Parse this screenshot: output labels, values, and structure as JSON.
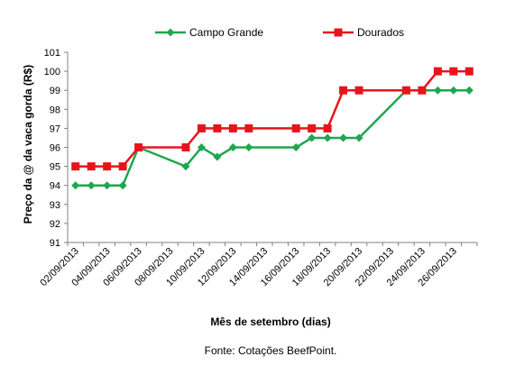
{
  "chart_data": {
    "type": "line",
    "ylabel": "Preço da @ da vaca gorda (R$)",
    "xlabel": "Mês de setembro  (dias)",
    "source": "Fonte: Cotações BeefPoint.",
    "ylim": [
      91,
      101
    ],
    "yticks": [
      91,
      92,
      93,
      94,
      95,
      96,
      97,
      98,
      99,
      100,
      101
    ],
    "grid": false,
    "legend_position": "top",
    "x_categories": [
      "02/09/2013",
      "03/09/2013",
      "04/09/2013",
      "05/09/2013",
      "06/09/2013",
      "07/09/2013",
      "08/09/2013",
      "09/09/2013",
      "10/09/2013",
      "11/09/2013",
      "12/09/2013",
      "13/09/2013",
      "14/09/2013",
      "15/09/2013",
      "16/09/2013",
      "17/09/2013",
      "18/09/2013",
      "19/09/2013",
      "20/09/2013",
      "21/09/2013",
      "22/09/2013",
      "23/09/2013",
      "24/09/2013",
      "25/09/2013",
      "26/09/2013",
      "27/09/2013"
    ],
    "x_tick_labels": [
      "02/09/2013",
      "04/09/2013",
      "06/09/2013",
      "08/09/2013",
      "10/09/2013",
      "12/09/2013",
      "14/09/2013",
      "16/09/2013",
      "18/09/2013",
      "20/09/2013",
      "22/09/2013",
      "24/09/2013",
      "26/09/2013"
    ],
    "series": [
      {
        "name": "Campo Grande",
        "color": "#1fa650",
        "marker": "diamond",
        "points": [
          {
            "x": "02/09/2013",
            "y": 94
          },
          {
            "x": "03/09/2013",
            "y": 94
          },
          {
            "x": "04/09/2013",
            "y": 94
          },
          {
            "x": "05/09/2013",
            "y": 94
          },
          {
            "x": "06/09/2013",
            "y": 96
          },
          {
            "x": "09/09/2013",
            "y": 95
          },
          {
            "x": "10/09/2013",
            "y": 96
          },
          {
            "x": "11/09/2013",
            "y": 95.5
          },
          {
            "x": "12/09/2013",
            "y": 96
          },
          {
            "x": "13/09/2013",
            "y": 96
          },
          {
            "x": "16/09/2013",
            "y": 96
          },
          {
            "x": "17/09/2013",
            "y": 96.5
          },
          {
            "x": "18/09/2013",
            "y": 96.5
          },
          {
            "x": "19/09/2013",
            "y": 96.5
          },
          {
            "x": "20/09/2013",
            "y": 96.5
          },
          {
            "x": "23/09/2013",
            "y": 99
          },
          {
            "x": "24/09/2013",
            "y": 99
          },
          {
            "x": "25/09/2013",
            "y": 99
          },
          {
            "x": "26/09/2013",
            "y": 99
          },
          {
            "x": "27/09/2013",
            "y": 99
          }
        ]
      },
      {
        "name": "Dourados",
        "color": "#e8141b",
        "marker": "square",
        "points": [
          {
            "x": "02/09/2013",
            "y": 95
          },
          {
            "x": "03/09/2013",
            "y": 95
          },
          {
            "x": "04/09/2013",
            "y": 95
          },
          {
            "x": "05/09/2013",
            "y": 95
          },
          {
            "x": "06/09/2013",
            "y": 96
          },
          {
            "x": "09/09/2013",
            "y": 96
          },
          {
            "x": "10/09/2013",
            "y": 97
          },
          {
            "x": "11/09/2013",
            "y": 97
          },
          {
            "x": "12/09/2013",
            "y": 97
          },
          {
            "x": "13/09/2013",
            "y": 97
          },
          {
            "x": "16/09/2013",
            "y": 97
          },
          {
            "x": "17/09/2013",
            "y": 97
          },
          {
            "x": "18/09/2013",
            "y": 97
          },
          {
            "x": "19/09/2013",
            "y": 99
          },
          {
            "x": "20/09/2013",
            "y": 99
          },
          {
            "x": "23/09/2013",
            "y": 99
          },
          {
            "x": "24/09/2013",
            "y": 99
          },
          {
            "x": "25/09/2013",
            "y": 100
          },
          {
            "x": "26/09/2013",
            "y": 100
          },
          {
            "x": "27/09/2013",
            "y": 100
          }
        ]
      }
    ]
  }
}
